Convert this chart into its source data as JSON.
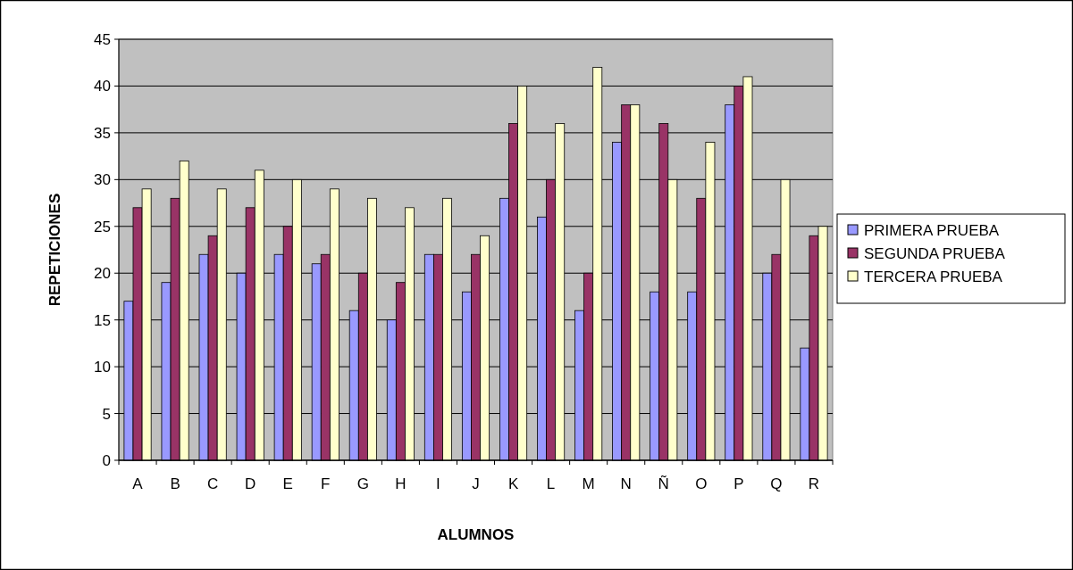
{
  "chart_data": {
    "type": "bar",
    "xlabel": "ALUMNOS",
    "ylabel": "REPETICIONES",
    "categories": [
      "A",
      "B",
      "C",
      "D",
      "E",
      "F",
      "G",
      "H",
      "I",
      "J",
      "K",
      "L",
      "M",
      "N",
      "Ñ",
      "O",
      "P",
      "Q",
      "R"
    ],
    "series": [
      {
        "name": "PRIMERA PRUEBA",
        "color": "#9999ff",
        "values": [
          17,
          19,
          22,
          20,
          22,
          21,
          16,
          15,
          22,
          18,
          28,
          26,
          16,
          34,
          18,
          18,
          38,
          20,
          12
        ]
      },
      {
        "name": "SEGUNDA PRUEBA",
        "color": "#993366",
        "values": [
          27,
          28,
          24,
          27,
          25,
          22,
          20,
          19,
          22,
          22,
          36,
          30,
          20,
          38,
          36,
          28,
          40,
          22,
          24
        ]
      },
      {
        "name": "TERCERA PRUEBA",
        "color": "#ffffcc",
        "values": [
          29,
          32,
          29,
          31,
          30,
          29,
          28,
          27,
          28,
          24,
          40,
          36,
          42,
          38,
          30,
          34,
          41,
          30,
          25
        ]
      }
    ],
    "ylim": [
      0,
      45
    ],
    "yticks": [
      0,
      5,
      10,
      15,
      20,
      25,
      30,
      35,
      40,
      45
    ],
    "grid": "y",
    "legend": "right"
  }
}
